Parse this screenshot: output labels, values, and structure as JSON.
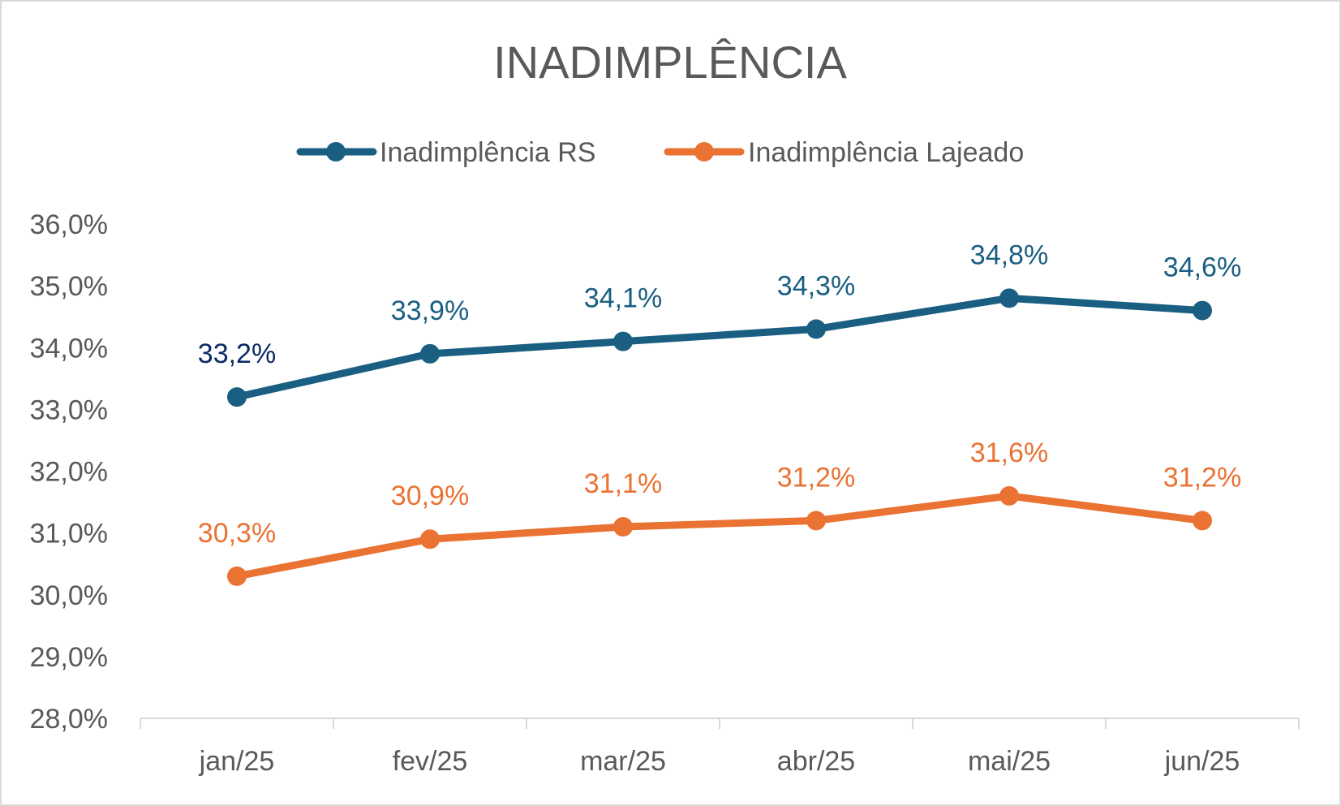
{
  "chart_data": {
    "type": "line",
    "title": "INADIMPLÊNCIA",
    "xlabel": "",
    "ylabel": "",
    "categories": [
      "jan/25",
      "fev/25",
      "mar/25",
      "abr/25",
      "mai/25",
      "jun/25"
    ],
    "ylim": [
      28.0,
      36.0
    ],
    "yticks": [
      "28,0%",
      "29,0%",
      "30,0%",
      "31,0%",
      "32,0%",
      "33,0%",
      "34,0%",
      "35,0%",
      "36,0%"
    ],
    "grid": false,
    "legend_position": "top",
    "series": [
      {
        "name": "Inadimplência RS",
        "values": [
          33.2,
          33.9,
          34.1,
          34.3,
          34.8,
          34.6
        ],
        "labels": [
          "33,2%",
          "33,9%",
          "34,1%",
          "34,3%",
          "34,8%",
          "34,6%"
        ],
        "color": "#1a5f82",
        "label_colors": [
          "#0d2a66",
          "#1a5f82",
          "#1a5f82",
          "#1a5f82",
          "#1a5f82",
          "#1a5f82"
        ]
      },
      {
        "name": "Inadimplência Lajeado",
        "values": [
          30.3,
          30.9,
          31.1,
          31.2,
          31.6,
          31.2
        ],
        "labels": [
          "30,3%",
          "30,9%",
          "31,1%",
          "31,2%",
          "31,6%",
          "31,2%"
        ],
        "color": "#ea7233",
        "label_colors": [
          "#ea7233",
          "#ea7233",
          "#ea7233",
          "#ea7233",
          "#ea7233",
          "#ea7233"
        ]
      }
    ]
  }
}
